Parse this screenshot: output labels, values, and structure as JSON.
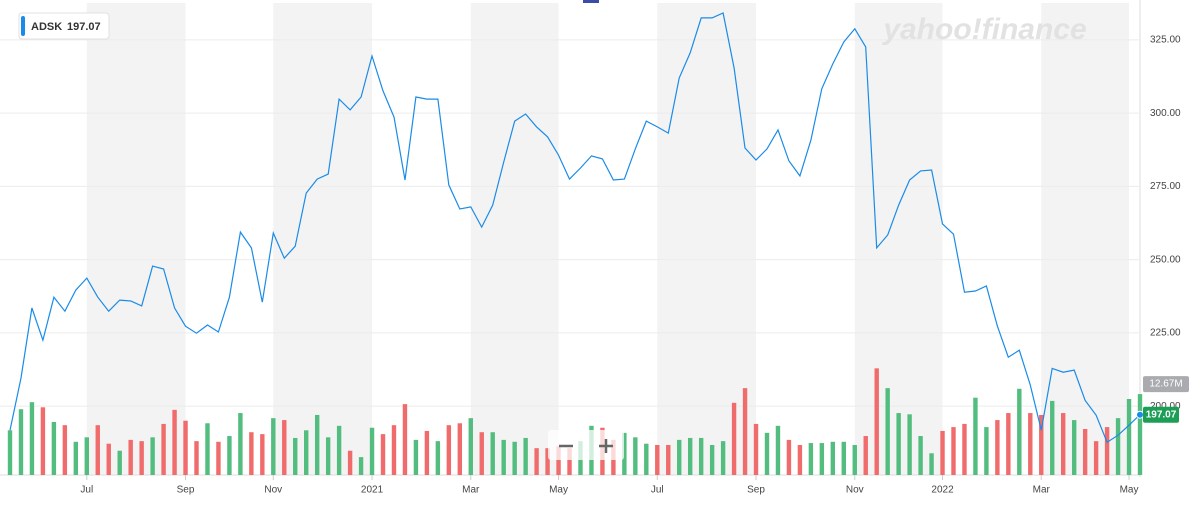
{
  "chart_data": {
    "type": "line",
    "watermark": "yahoo!finance",
    "categories": [
      null,
      null,
      null,
      null,
      null,
      null,
      null,
      "Jul",
      null,
      null,
      null,
      null,
      null,
      null,
      null,
      null,
      "Sep",
      null,
      null,
      null,
      null,
      null,
      null,
      null,
      "Nov",
      null,
      null,
      null,
      null,
      null,
      null,
      null,
      null,
      "2021",
      null,
      null,
      null,
      null,
      null,
      null,
      null,
      null,
      "Mar",
      null,
      null,
      null,
      null,
      null,
      null,
      null,
      "May",
      null,
      null,
      null,
      null,
      null,
      null,
      null,
      null,
      "Jul",
      null,
      null,
      null,
      null,
      null,
      null,
      null,
      null,
      "Sep",
      null,
      null,
      null,
      null,
      null,
      null,
      null,
      null,
      "Nov",
      null,
      null,
      null,
      null,
      null,
      null,
      null,
      "2022",
      null,
      null,
      null,
      null,
      null,
      null,
      null,
      null,
      "Mar",
      null,
      null,
      null,
      null,
      null,
      null,
      null,
      "May",
      null
    ],
    "series": [
      {
        "name": "ADSK",
        "color": "#1a8be8",
        "values": [
          191.8,
          209.6,
          233.5,
          222.5,
          237.2,
          232.4,
          239.6,
          243.7,
          237.2,
          232.4,
          236.2,
          235.9,
          234.2,
          247.8,
          246.8,
          233.5,
          227.3,
          224.9,
          227.7,
          225.3,
          237.2,
          259.4,
          254.0,
          235.5,
          259.1,
          250.5,
          254.6,
          272.7,
          277.5,
          279.2,
          304.8,
          301.1,
          305.5,
          319.5,
          307.6,
          298.7,
          277.2,
          305.5,
          304.8,
          304.8,
          275.5,
          267.3,
          268.0,
          261.1,
          268.6,
          283.3,
          297.3,
          299.7,
          295.3,
          291.9,
          285.7,
          277.5,
          281.3,
          285.4,
          284.4,
          277.2,
          277.5,
          287.8,
          297.3,
          295.3,
          293.2,
          312.0,
          320.6,
          332.5,
          332.5,
          334.2,
          315.4,
          288.1,
          284.0,
          287.8,
          294.3,
          283.7,
          278.6,
          290.8,
          308.3,
          316.8,
          324.3,
          328.8,
          322.6,
          254.0,
          258.4,
          268.6,
          277.2,
          280.3,
          280.6,
          262.2,
          258.7,
          238.9,
          239.3,
          241.0,
          227.3,
          216.7,
          219.1,
          207.2,
          191.8,
          212.9,
          211.6,
          212.3,
          202.0,
          196.9,
          187.7,
          190.1,
          193.5,
          197.07
        ]
      },
      {
        "type": "bar",
        "axis": "y2",
        "up_color": "#52bd7e",
        "down_color": "#f06b6b",
        "values": [
          7.0,
          10.3,
          11.4,
          10.6,
          8.3,
          7.8,
          5.2,
          5.9,
          7.8,
          4.9,
          3.8,
          5.5,
          5.3,
          5.9,
          8.0,
          10.2,
          8.5,
          5.3,
          8.1,
          5.2,
          6.1,
          9.7,
          6.7,
          6.4,
          8.9,
          8.6,
          5.8,
          7.0,
          9.4,
          5.9,
          7.7,
          3.8,
          2.8,
          7.4,
          6.4,
          7.8,
          11.1,
          5.5,
          6.9,
          5.3,
          7.8,
          8.1,
          8.9,
          6.7,
          6.7,
          5.5,
          5.2,
          5.8,
          4.2,
          4.2,
          4.5,
          4.2,
          5.3,
          7.7,
          7.4,
          5.5,
          6.6,
          5.9,
          4.9,
          4.7,
          4.7,
          5.5,
          5.8,
          5.8,
          4.7,
          5.3,
          11.3,
          13.6,
          8.0,
          6.6,
          7.7,
          5.5,
          4.7,
          5.0,
          5.0,
          5.2,
          5.2,
          4.7,
          6.1,
          16.7,
          13.6,
          9.7,
          9.5,
          6.1,
          3.4,
          6.9,
          7.5,
          8.0,
          12.1,
          7.5,
          8.6,
          9.7,
          13.5,
          9.7,
          9.4,
          11.6,
          9.7,
          8.6,
          7.2,
          5.3,
          7.5,
          8.9,
          11.9,
          12.67
        ],
        "value_labels": [
          null,
          null,
          null,
          null,
          null,
          null,
          null,
          null,
          null,
          null,
          null,
          null,
          null,
          null,
          null,
          null,
          null,
          null,
          null,
          null,
          null,
          null,
          null,
          null,
          null,
          null,
          null,
          null,
          null,
          null,
          null,
          null,
          null,
          null,
          null,
          null,
          null,
          null,
          null,
          null,
          null,
          null,
          null,
          null,
          null,
          null,
          null,
          null,
          null,
          null,
          null,
          null,
          null,
          null,
          null,
          null,
          null,
          null,
          null,
          null,
          null,
          null,
          null,
          null,
          null,
          null,
          null,
          null,
          null,
          null,
          null,
          null,
          null,
          null,
          null,
          null,
          null,
          null,
          null,
          null,
          null,
          null,
          null,
          null,
          null,
          null,
          null,
          null,
          null,
          null,
          null,
          null,
          null,
          null,
          null,
          null,
          null,
          null,
          null,
          null,
          null,
          null,
          null,
          "12.67M"
        ]
      }
    ],
    "ylim": [
      176.5,
      337.6
    ],
    "yticks": [
      {
        "value": 200,
        "label": "200.00"
      },
      {
        "value": 225,
        "label": "225.00"
      },
      {
        "value": 250,
        "label": "250.00"
      },
      {
        "value": 275,
        "label": "275.00"
      },
      {
        "value": 300,
        "label": "300.00"
      },
      {
        "value": 325,
        "label": "325.00"
      }
    ],
    "y2lim": [
      0,
      73.9
    ],
    "grid": true,
    "shade_color": "#f3f3f3"
  }
}
